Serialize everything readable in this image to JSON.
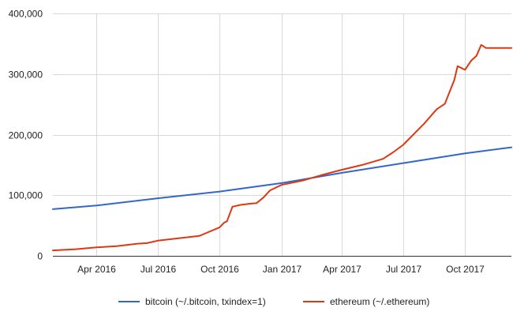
{
  "chart_data": {
    "type": "line",
    "title": "",
    "xlabel": "",
    "ylabel": "",
    "x_range": [
      "2016-01-27",
      "2017-12-09"
    ],
    "ylim": [
      0,
      400000
    ],
    "y_ticks": [
      0,
      100000,
      200000,
      300000,
      400000
    ],
    "y_tick_labels": [
      "0",
      "100,000",
      "200,000",
      "300,000",
      "400,000"
    ],
    "x_ticks": [
      "2016-04-01",
      "2016-07-01",
      "2016-10-01",
      "2017-01-01",
      "2017-04-01",
      "2017-07-01",
      "2017-10-01"
    ],
    "x_tick_labels": [
      "Apr 2016",
      "Jul 2016",
      "Oct 2016",
      "Jan 2017",
      "Apr 2017",
      "Jul 2017",
      "Oct 2017"
    ],
    "grid": true,
    "legend_position": "bottom",
    "series": [
      {
        "name": "bitcoin (~/.bitcoin, txindex=1)",
        "color": "#3366cc",
        "x": [
          "2016-01-27",
          "2016-04-01",
          "2016-07-01",
          "2016-10-01",
          "2017-01-01",
          "2017-04-01",
          "2017-07-01",
          "2017-10-01",
          "2017-12-09"
        ],
        "values": [
          77000,
          83000,
          95000,
          106000,
          120000,
          137000,
          153000,
          169000,
          179000
        ]
      },
      {
        "name": "ethereum (~/.ethereum)",
        "color": "#dc3912",
        "x": [
          "2016-01-27",
          "2016-03-01",
          "2016-04-01",
          "2016-05-01",
          "2016-06-01",
          "2016-06-15",
          "2016-07-01",
          "2016-08-01",
          "2016-09-01",
          "2016-10-01",
          "2016-10-08",
          "2016-10-12",
          "2016-10-20",
          "2016-11-01",
          "2016-11-15",
          "2016-11-25",
          "2016-12-05",
          "2016-12-15",
          "2017-01-01",
          "2017-02-01",
          "2017-03-01",
          "2017-04-01",
          "2017-05-01",
          "2017-06-01",
          "2017-06-15",
          "2017-07-01",
          "2017-08-01",
          "2017-08-20",
          "2017-09-01",
          "2017-09-15",
          "2017-09-20",
          "2017-10-01",
          "2017-10-10",
          "2017-10-18",
          "2017-10-25",
          "2017-11-01",
          "2017-12-09"
        ],
        "values": [
          9000,
          11000,
          14000,
          16000,
          20000,
          21000,
          25000,
          29000,
          33000,
          47000,
          55000,
          57000,
          81000,
          84000,
          86000,
          87000,
          96000,
          108000,
          117000,
          124000,
          133000,
          142000,
          150000,
          160000,
          170000,
          183000,
          218000,
          242000,
          251000,
          290000,
          313000,
          307000,
          322000,
          330000,
          348000,
          343000,
          343000
        ]
      }
    ]
  }
}
